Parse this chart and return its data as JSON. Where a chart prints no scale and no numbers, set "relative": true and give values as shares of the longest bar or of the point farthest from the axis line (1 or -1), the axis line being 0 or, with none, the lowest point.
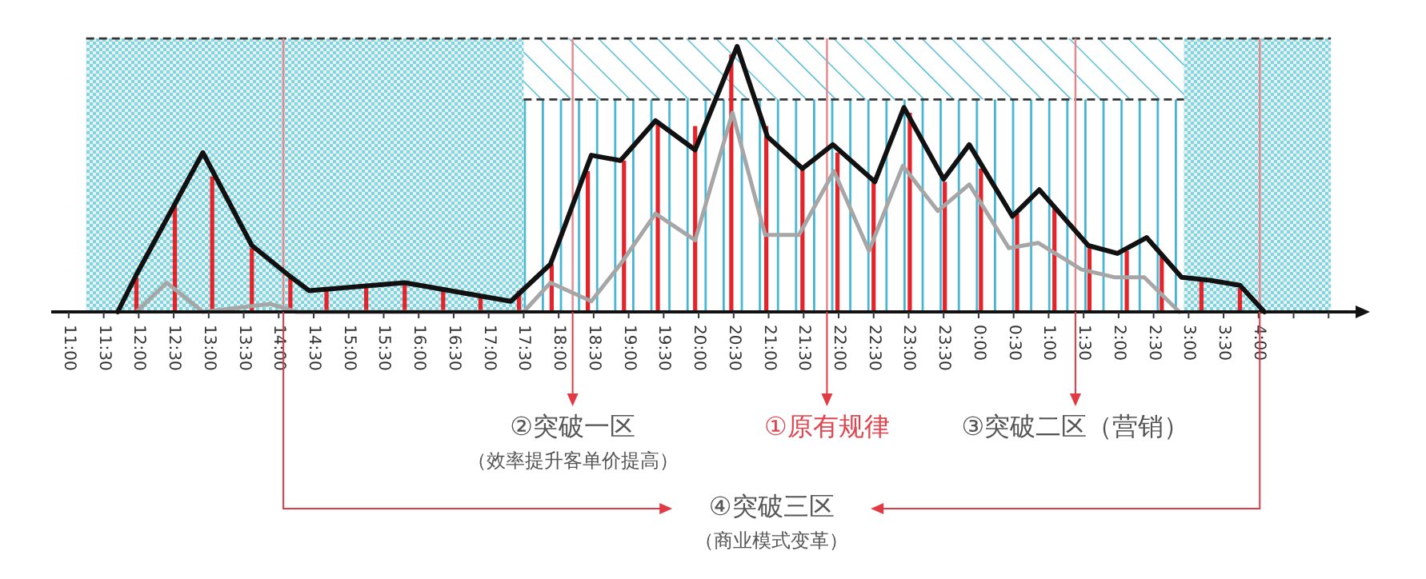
{
  "chart_data": {
    "type": "line",
    "relative": true,
    "xlim": [
      "2000-01-01T10:45",
      "2000-01-02T05:30"
    ],
    "xticks": [
      {
        "value": "2000-01-01T11:00",
        "label": "11:00"
      },
      {
        "value": "2000-01-01T11:30",
        "label": "11:30"
      },
      {
        "value": "2000-01-01T12:00",
        "label": "12:00"
      },
      {
        "value": "2000-01-01T12:30",
        "label": "12:30"
      },
      {
        "value": "2000-01-01T13:00",
        "label": "13:00"
      },
      {
        "value": "2000-01-01T13:30",
        "label": "13:30"
      },
      {
        "value": "2000-01-01T14:00",
        "label": "14:00"
      },
      {
        "value": "2000-01-01T14:30",
        "label": "14:30"
      },
      {
        "value": "2000-01-01T15:00",
        "label": "15:00"
      },
      {
        "value": "2000-01-01T15:30",
        "label": "15:30"
      },
      {
        "value": "2000-01-01T16:00",
        "label": "16:00"
      },
      {
        "value": "2000-01-01T16:30",
        "label": "16:30"
      },
      {
        "value": "2000-01-01T17:00",
        "label": "17:00"
      },
      {
        "value": "2000-01-01T17:30",
        "label": "17:30"
      },
      {
        "value": "2000-01-01T18:00",
        "label": "18:00"
      },
      {
        "value": "2000-01-01T18:30",
        "label": "18:30"
      },
      {
        "value": "2000-01-01T19:00",
        "label": "19:00"
      },
      {
        "value": "2000-01-01T19:30",
        "label": "19:30"
      },
      {
        "value": "2000-01-01T20:00",
        "label": "20:00"
      },
      {
        "value": "2000-01-01T20:30",
        "label": "20:30"
      },
      {
        "value": "2000-01-01T21:00",
        "label": "21:00"
      },
      {
        "value": "2000-01-01T21:30",
        "label": "21:30"
      },
      {
        "value": "2000-01-01T22:00",
        "label": "22:00"
      },
      {
        "value": "2000-01-01T22:30",
        "label": "22:30"
      },
      {
        "value": "2000-01-01T23:00",
        "label": "23:00"
      },
      {
        "value": "2000-01-01T23:30",
        "label": "23:30"
      },
      {
        "value": "2000-01-02T00:00",
        "label": "0:00"
      },
      {
        "value": "2000-01-02T00:30",
        "label": "0:30"
      },
      {
        "value": "2000-01-02T01:00",
        "label": "1:00"
      },
      {
        "value": "2000-01-02T01:30",
        "label": "1:30"
      },
      {
        "value": "2000-01-02T02:00",
        "label": "2:00"
      },
      {
        "value": "2000-01-02T02:30",
        "label": "2:30"
      },
      {
        "value": "2000-01-02T03:00",
        "label": "3:00"
      },
      {
        "value": "2000-01-02T03:30",
        "label": "3:30"
      },
      {
        "value": "2000-01-02T04:00",
        "label": "4:00"
      },
      {
        "value": "2000-01-02T04:30",
        "label": null
      },
      {
        "value": "2000-01-02T05:00",
        "label": null
      }
    ],
    "series": [
      {
        "type": "bar",
        "color": "#e3242b",
        "x": [
          "2000-01-01T11:58",
          "2000-01-01T12:31",
          "2000-01-01T13:03",
          "2000-01-01T13:37",
          "2000-01-01T14:10",
          "2000-01-01T14:41",
          "2000-01-01T15:15",
          "2000-01-01T15:48",
          "2000-01-01T16:21",
          "2000-01-01T16:53",
          "2000-01-01T17:26",
          "2000-01-01T17:54",
          "2000-01-01T18:25",
          "2000-01-01T18:56",
          "2000-01-01T19:25",
          "2000-01-01T19:57",
          "2000-01-01T20:28",
          "2000-01-01T20:58",
          "2000-01-01T21:29",
          "2000-01-01T21:59",
          "2000-01-01T22:30",
          "2000-01-01T23:01",
          "2000-01-01T23:31",
          "2000-01-02T00:02",
          "2000-01-02T00:33",
          "2000-01-02T01:05",
          "2000-01-02T01:35",
          "2000-01-02T02:07",
          "2000-01-02T02:37",
          "2000-01-02T03:11",
          "2000-01-02T03:44"
        ],
        "values": [
          0.13,
          0.41,
          0.51,
          0.24,
          0.13,
          0.08,
          0.09,
          0.11,
          0.08,
          0.06,
          0.08,
          0.18,
          0.53,
          0.57,
          0.72,
          0.7,
          0.97,
          0.7,
          0.54,
          0.6,
          0.49,
          0.75,
          0.49,
          0.54,
          0.37,
          0.39,
          0.25,
          0.23,
          0.21,
          0.12,
          0.09
        ]
      },
      {
        "color": "#a6a6a6",
        "x": [
          "2000-01-01T11:58",
          "2000-01-01T12:24",
          "2000-01-01T12:55",
          "2000-01-01T13:53",
          "2000-01-01T14:15",
          "2000-01-01T17:30",
          "2000-01-01T17:53",
          "2000-01-01T18:28",
          "2000-01-01T18:53",
          "2000-01-01T19:23",
          "2000-01-01T19:57",
          "2000-01-01T20:29",
          "2000-01-01T20:57",
          "2000-01-01T21:26",
          "2000-01-01T21:56",
          "2000-01-01T22:26",
          "2000-01-01T22:55",
          "2000-01-01T23:25",
          "2000-01-01T23:52",
          "2000-01-02T00:26",
          "2000-01-02T00:51",
          "2000-01-02T01:28",
          "2000-01-02T01:57",
          "2000-01-02T02:22",
          "2000-01-02T02:52"
        ],
        "values": [
          0,
          0.11,
          0,
          0.03,
          0,
          0,
          0.11,
          0.04,
          0.18,
          0.37,
          0.27,
          0.75,
          0.29,
          0.29,
          0.53,
          0.23,
          0.55,
          0.38,
          0.48,
          0.24,
          0.26,
          0.16,
          0.13,
          0.13,
          0
        ]
      },
      {
        "color": "#111111",
        "x": [
          "2000-01-01T11:42",
          "2000-01-01T11:58",
          "2000-01-01T12:55",
          "2000-01-01T13:37",
          "2000-01-01T14:08",
          "2000-01-01T14:26",
          "2000-01-01T15:48",
          "2000-01-01T17:19",
          "2000-01-01T17:53",
          "2000-01-01T18:28",
          "2000-01-01T18:53",
          "2000-01-01T19:23",
          "2000-01-01T19:57",
          "2000-01-01T20:33",
          "2000-01-01T20:59",
          "2000-01-01T21:29",
          "2000-01-01T21:55",
          "2000-01-01T22:31",
          "2000-01-01T22:56",
          "2000-01-01T23:30",
          "2000-01-01T23:52",
          "2000-01-02T00:29",
          "2000-01-02T00:52",
          "2000-01-02T01:34",
          "2000-01-02T01:59",
          "2000-01-02T02:24",
          "2000-01-02T02:54",
          "2000-01-02T03:17",
          "2000-01-02T03:44",
          "2000-01-02T04:05"
        ],
        "values": [
          0,
          0.14,
          0.6,
          0.25,
          0.14,
          0.08,
          0.11,
          0.04,
          0.18,
          0.59,
          0.57,
          0.72,
          0.61,
          1,
          0.66,
          0.54,
          0.63,
          0.49,
          0.77,
          0.5,
          0.63,
          0.36,
          0.46,
          0.25,
          0.22,
          0.28,
          0.13,
          0.12,
          0.1,
          0
        ]
      }
    ],
    "bands": [
      {
        "axis": "x",
        "from": "2000-01-01T11:15",
        "to": "2000-01-01T17:30",
        "color": "#5fc3cf"
      },
      {
        "axis": "x",
        "from": "2000-01-02T02:56",
        "to": "2000-01-02T05:02",
        "color": "#5fc3cf"
      }
    ],
    "ref_lines": [
      {
        "axis": "y",
        "value": 0.8,
        "line_style": "dashed",
        "color": "#333333"
      },
      {
        "axis": "y",
        "value": 1.03,
        "line_style": "dashed",
        "color": "#333333"
      },
      {
        "axis": "x",
        "value": "2000-01-01T14:04",
        "color": "#e8868c"
      },
      {
        "axis": "x",
        "value": "2000-01-01T18:12",
        "color": "#e8868c"
      },
      {
        "axis": "x",
        "value": "2000-01-01T21:50",
        "color": "#e8868c"
      },
      {
        "axis": "x",
        "value": "2000-01-02T01:23",
        "color": "#e8868c"
      },
      {
        "axis": "x",
        "value": "2000-01-02T04:01",
        "color": "#e8868c"
      }
    ],
    "annotations": [
      "②突破一区",
      "（效率提升客单价提高）",
      "①原有规律",
      "③突破二区（营销）",
      "④突破三区",
      "（商业模式变革）"
    ]
  }
}
